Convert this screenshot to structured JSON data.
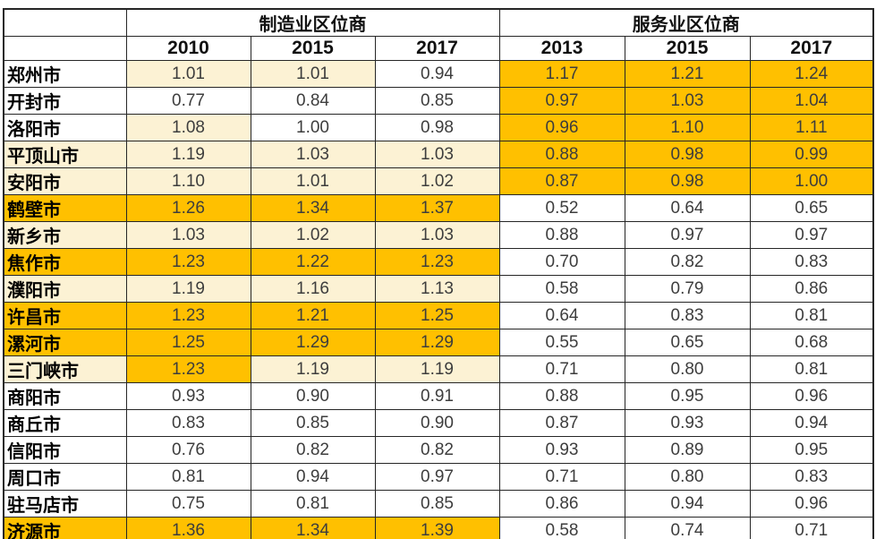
{
  "colors": {
    "highlight_strong": "#FFC000",
    "highlight_light": "#FCF2D4",
    "plain": "#FFFFFF",
    "border": "#262626",
    "value_text": "#3d3d3d"
  },
  "chart_data": {
    "type": "table",
    "corner_label": "",
    "column_groups": [
      {
        "label": "制造业区位商",
        "years": [
          "2010",
          "2015",
          "2017"
        ]
      },
      {
        "label": "服务业区位商",
        "years": [
          "2013",
          "2015",
          "2017"
        ]
      }
    ],
    "colors": {
      "orange": "#FFC000",
      "cream": "#FCF2D4",
      "white": "#FFFFFF"
    },
    "rows": [
      {
        "city": "郑州市",
        "city_bg": "white",
        "values": [
          "1.01",
          "1.01",
          "0.94",
          "1.17",
          "1.21",
          "1.24"
        ],
        "bg": [
          "cream",
          "cream",
          "white",
          "orange",
          "orange",
          "orange"
        ]
      },
      {
        "city": "开封市",
        "city_bg": "white",
        "values": [
          "0.77",
          "0.84",
          "0.85",
          "0.97",
          "1.03",
          "1.04"
        ],
        "bg": [
          "white",
          "white",
          "white",
          "orange",
          "orange",
          "orange"
        ]
      },
      {
        "city": "洛阳市",
        "city_bg": "white",
        "values": [
          "1.08",
          "1.00",
          "0.98",
          "0.96",
          "1.10",
          "1.11"
        ],
        "bg": [
          "cream",
          "white",
          "white",
          "orange",
          "orange",
          "orange"
        ]
      },
      {
        "city": "平顶山市",
        "city_bg": "cream",
        "values": [
          "1.19",
          "1.03",
          "1.03",
          "0.88",
          "0.98",
          "0.99"
        ],
        "bg": [
          "cream",
          "cream",
          "cream",
          "orange",
          "orange",
          "orange"
        ]
      },
      {
        "city": "安阳市",
        "city_bg": "cream",
        "values": [
          "1.10",
          "1.01",
          "1.02",
          "0.87",
          "0.98",
          "1.00"
        ],
        "bg": [
          "cream",
          "cream",
          "cream",
          "orange",
          "orange",
          "orange"
        ]
      },
      {
        "city": "鹤壁市",
        "city_bg": "orange",
        "values": [
          "1.26",
          "1.34",
          "1.37",
          "0.52",
          "0.64",
          "0.65"
        ],
        "bg": [
          "orange",
          "orange",
          "orange",
          "white",
          "white",
          "white"
        ]
      },
      {
        "city": "新乡市",
        "city_bg": "cream",
        "values": [
          "1.03",
          "1.02",
          "1.03",
          "0.88",
          "0.97",
          "0.97"
        ],
        "bg": [
          "cream",
          "cream",
          "cream",
          "white",
          "white",
          "white"
        ]
      },
      {
        "city": "焦作市",
        "city_bg": "orange",
        "values": [
          "1.23",
          "1.22",
          "1.23",
          "0.70",
          "0.82",
          "0.83"
        ],
        "bg": [
          "orange",
          "orange",
          "orange",
          "white",
          "white",
          "white"
        ]
      },
      {
        "city": "濮阳市",
        "city_bg": "cream",
        "values": [
          "1.19",
          "1.16",
          "1.13",
          "0.58",
          "0.79",
          "0.86"
        ],
        "bg": [
          "cream",
          "cream",
          "cream",
          "white",
          "white",
          "white"
        ]
      },
      {
        "city": "许昌市",
        "city_bg": "orange",
        "values": [
          "1.23",
          "1.21",
          "1.25",
          "0.64",
          "0.83",
          "0.81"
        ],
        "bg": [
          "orange",
          "orange",
          "orange",
          "white",
          "white",
          "white"
        ]
      },
      {
        "city": "漯河市",
        "city_bg": "orange",
        "values": [
          "1.25",
          "1.29",
          "1.29",
          "0.55",
          "0.65",
          "0.68"
        ],
        "bg": [
          "orange",
          "orange",
          "orange",
          "white",
          "white",
          "white"
        ]
      },
      {
        "city": "三门峡市",
        "city_bg": "cream",
        "values": [
          "1.23",
          "1.19",
          "1.19",
          "0.71",
          "0.80",
          "0.81"
        ],
        "bg": [
          "orange",
          "cream",
          "cream",
          "white",
          "white",
          "white"
        ]
      },
      {
        "city": "商阳市",
        "city_bg": "white",
        "values": [
          "0.93",
          "0.90",
          "0.91",
          "0.88",
          "0.95",
          "0.96"
        ],
        "bg": [
          "white",
          "white",
          "white",
          "white",
          "white",
          "white"
        ]
      },
      {
        "city": "商丘市",
        "city_bg": "white",
        "values": [
          "0.83",
          "0.85",
          "0.90",
          "0.87",
          "0.93",
          "0.94"
        ],
        "bg": [
          "white",
          "white",
          "white",
          "white",
          "white",
          "white"
        ]
      },
      {
        "city": "信阳市",
        "city_bg": "white",
        "values": [
          "0.76",
          "0.82",
          "0.82",
          "0.93",
          "0.89",
          "0.95"
        ],
        "bg": [
          "white",
          "white",
          "white",
          "white",
          "white",
          "white"
        ]
      },
      {
        "city": "周口市",
        "city_bg": "white",
        "values": [
          "0.81",
          "0.94",
          "0.97",
          "0.71",
          "0.80",
          "0.83"
        ],
        "bg": [
          "white",
          "white",
          "white",
          "white",
          "white",
          "white"
        ]
      },
      {
        "city": "驻马店市",
        "city_bg": "white",
        "values": [
          "0.75",
          "0.81",
          "0.85",
          "0.86",
          "0.94",
          "0.96"
        ],
        "bg": [
          "white",
          "white",
          "white",
          "white",
          "white",
          "white"
        ]
      },
      {
        "city": "济源市",
        "city_bg": "orange",
        "values": [
          "1.36",
          "1.34",
          "1.39",
          "0.58",
          "0.74",
          "0.71"
        ],
        "bg": [
          "orange",
          "orange",
          "orange",
          "white",
          "white",
          "white"
        ]
      }
    ]
  }
}
